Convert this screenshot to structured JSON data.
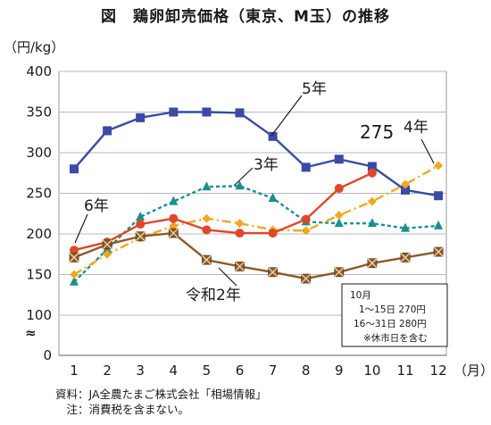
{
  "title": "図　鶏卵卸売価格（東京、M玉）の推移",
  "chart_data": {
    "type": "line",
    "ylabel": "（円/kg）",
    "xlabel": "（月）",
    "categories": [
      "1",
      "2",
      "3",
      "4",
      "5",
      "6",
      "7",
      "8",
      "9",
      "10",
      "11",
      "12"
    ],
    "yticks": [
      "0",
      "100",
      "150",
      "200",
      "250",
      "300",
      "350",
      "400"
    ],
    "axis_break": "≈",
    "ylim": [
      0,
      400
    ],
    "grid": true,
    "series": [
      {
        "name": "5年",
        "color": "#3b4aa3",
        "marker": "square",
        "dash": "",
        "values": [
          280,
          327,
          343,
          350,
          350,
          349,
          320,
          282,
          292,
          283,
          254,
          247
        ]
      },
      {
        "name": "3年",
        "color": "#1a8f8f",
        "marker": "triangle",
        "dash": "4,3",
        "values": [
          141,
          181,
          221,
          240,
          258,
          259,
          244,
          215,
          213,
          213,
          207,
          210
        ]
      },
      {
        "name": "4年",
        "color": "#f0a820",
        "marker": "diamond",
        "dash": "10,4,2,4",
        "values": [
          150,
          175,
          195,
          210,
          219,
          213,
          205,
          204,
          223,
          240,
          261,
          284
        ]
      },
      {
        "name": "6年",
        "color": "#e0472a",
        "marker": "circle",
        "dash": "",
        "values": [
          180,
          190,
          212,
          219,
          205,
          201,
          201,
          218,
          256,
          275,
          null,
          null
        ]
      },
      {
        "name": "令和2年",
        "color": "#8b5a2b",
        "marker": "cross",
        "dash": "",
        "values": [
          171,
          187,
          197,
          201,
          168,
          160,
          153,
          145,
          153,
          164,
          171,
          178
        ]
      }
    ],
    "annotations": {
      "s5": "5年",
      "s3": "3年",
      "s4": "4年",
      "s6": "6年",
      "r2": "令和2年",
      "latest_value": "275"
    },
    "note_box": [
      "10月",
      "1～15日  270円",
      "16～31日  280円",
      "※休市日を含む"
    ]
  },
  "footer": {
    "source": "資料：JA全農たまご株式会社「相場情報」",
    "note": "　注：消費税を含まない。"
  }
}
